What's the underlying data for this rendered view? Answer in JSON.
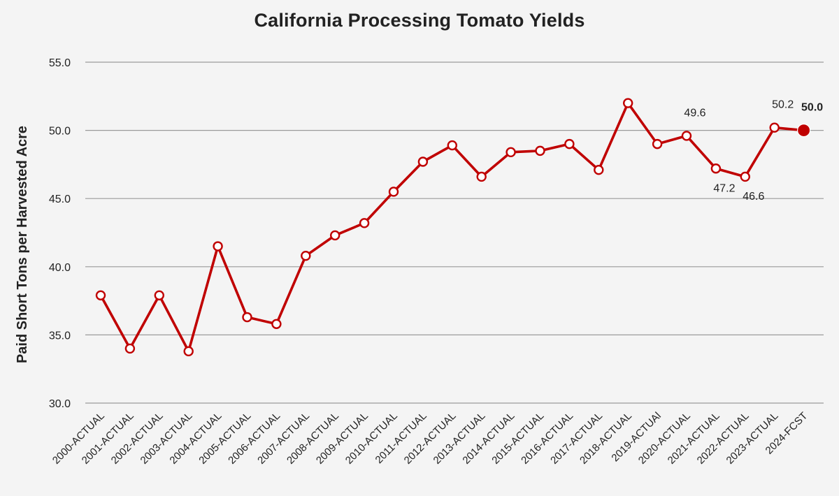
{
  "chart_data": {
    "type": "line",
    "title": "California Processing Tomato Yields",
    "xlabel": "",
    "ylabel": "Paid Short Tons per Harvested Acre",
    "ylim": [
      30,
      55
    ],
    "yticks": [
      "30.0",
      "35.0",
      "40.0",
      "45.0",
      "50.0",
      "55.0"
    ],
    "grid": true,
    "legend": "none",
    "line_color": "#c00000",
    "categories": [
      "2000-ACTUAL",
      "2001-ACTUAL",
      "2002-ACTUAL",
      "2003-ACTUAL",
      "2004-ACTUAL",
      "2005-ACTUAL",
      "2006-ACTUAL",
      "2007-ACTUAL",
      "2008-ACTUAL",
      "2009-ACTUAL",
      "2010-ACTUAL",
      "2011-ACTUAL",
      "2012-ACTUAL",
      "2013-ACTUAL",
      "2014-ACTUAL",
      "2015-ACTUAL",
      "2016-ACTUAL",
      "2017-ACTUAL",
      "2018-ACTUAL",
      "2019-ACTUAl",
      "2020-ACTUAL",
      "2021-ACTUAL",
      "2022-ACTUAL",
      "2023-ACTUAL",
      "2024-FCST"
    ],
    "values": [
      37.9,
      34.0,
      37.9,
      33.8,
      41.5,
      36.3,
      35.8,
      40.8,
      42.3,
      43.2,
      45.5,
      47.7,
      48.9,
      46.6,
      48.4,
      48.5,
      49.0,
      47.1,
      52.0,
      49.0,
      49.6,
      47.2,
      46.6,
      50.2,
      50.0
    ],
    "data_labels": [
      {
        "index": 20,
        "text": "49.6",
        "position": "above",
        "bold": false
      },
      {
        "index": 21,
        "text": "47.2",
        "position": "below",
        "bold": false
      },
      {
        "index": 22,
        "text": "46.6",
        "position": "below",
        "bold": false
      },
      {
        "index": 23,
        "text": "50.2",
        "position": "above",
        "bold": false
      },
      {
        "index": 24,
        "text": "50.0",
        "position": "above",
        "bold": true
      }
    ],
    "forecast_index": 24
  }
}
